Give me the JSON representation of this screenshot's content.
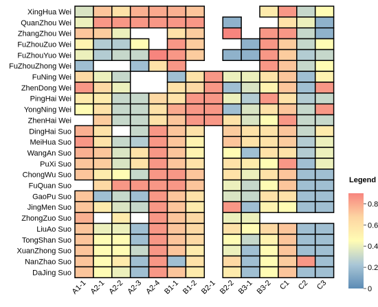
{
  "chart_data": {
    "type": "heatmap",
    "rows": [
      "XingHua Wei",
      "QuanZhou Wei",
      "ZhangZhou Wei",
      "FuZhouZuo Wei",
      "FuZhouYuo Wei",
      "FuZhouZhong Wei",
      "FuNing Wei",
      "ZhenDong Wei",
      "PingHai Wei",
      "YongNing Wei",
      "ZhenHai Wei",
      "DingHai Suo",
      "MeiHua Suo",
      "WangAn Suo",
      "PuXi Suo",
      "ChongWu Suo",
      "FuQuan Suo",
      "GaoPu Suo",
      "JingMen Suo",
      "ZhongZuo Suo",
      "LiuAo Suo",
      "TongShan Suo",
      "XuanZhong Suo",
      "NanZhao Suo",
      "DaJing Suo"
    ],
    "columns": [
      "A1-1",
      "A2-1",
      "A2-2",
      "A2-3",
      "A2-4",
      "B1-1",
      "B1-2",
      "B2-1",
      "B2-2",
      "B3-1",
      "B3-2",
      "C1",
      "C2",
      "C3"
    ],
    "values": [
      [
        0.35,
        0.72,
        0.6,
        0.78,
        0.8,
        0.78,
        0.72,
        null,
        null,
        null,
        0.55,
        0.85,
        0.3,
        0.45
      ],
      [
        0.4,
        0.85,
        0.85,
        0.85,
        0.85,
        0.85,
        0.85,
        null,
        0.15,
        null,
        null,
        0.6,
        0.4,
        0.15
      ],
      [
        0.72,
        0.7,
        0.4,
        null,
        null,
        0.6,
        0.7,
        null,
        0.9,
        null,
        0.85,
        0.85,
        0.3,
        0.15
      ],
      [
        0.5,
        0.25,
        0.25,
        0.45,
        null,
        0.85,
        0.7,
        null,
        null,
        0.15,
        0.85,
        0.7,
        0.3,
        0.45
      ],
      [
        0.4,
        0.25,
        0.3,
        0.3,
        0.9,
        0.85,
        0.7,
        null,
        0.15,
        0.15,
        0.85,
        0.7,
        0.25,
        0.3
      ],
      [
        0.2,
        null,
        null,
        0.2,
        0.6,
        0.85,
        null,
        null,
        null,
        null,
        0.85,
        0.72,
        0.3,
        0.45
      ],
      [
        0.65,
        0.4,
        0.3,
        null,
        null,
        0.2,
        0.6,
        0.85,
        0.4,
        0.4,
        0.6,
        0.72,
        0.2,
        0.5
      ],
      [
        0.85,
        0.65,
        0.4,
        null,
        null,
        0.6,
        0.65,
        0.85,
        0.2,
        0.35,
        0.5,
        0.72,
        0.2,
        0.85
      ],
      [
        0.55,
        0.55,
        0.3,
        0.3,
        0.65,
        0.6,
        0.85,
        0.85,
        0.4,
        0.25,
        0.85,
        0.6,
        0.25,
        0.3
      ],
      [
        0.45,
        0.6,
        0.3,
        0.3,
        0.6,
        0.8,
        0.85,
        0.85,
        0.2,
        0.35,
        0.6,
        0.72,
        0.3,
        0.85
      ],
      [
        null,
        0.7,
        0.3,
        0.3,
        0.6,
        0.72,
        0.85,
        0.85,
        0.6,
        0.35,
        0.45,
        0.85,
        0.3,
        0.3
      ],
      [
        0.78,
        0.6,
        null,
        0.3,
        0.85,
        0.72,
        0.6,
        null,
        0.7,
        0.6,
        0.6,
        0.72,
        0.3,
        0.55
      ],
      [
        0.85,
        0.6,
        0.3,
        0.25,
        0.85,
        0.72,
        0.5,
        null,
        0.72,
        0.6,
        0.6,
        0.7,
        0.25,
        0.4
      ],
      [
        0.78,
        0.72,
        0.35,
        0.6,
        0.85,
        0.72,
        0.5,
        null,
        0.45,
        0.2,
        0.6,
        0.6,
        0.25,
        0.4
      ],
      [
        0.72,
        0.7,
        0.35,
        0.6,
        0.85,
        0.72,
        0.6,
        null,
        0.6,
        0.55,
        0.45,
        0.85,
        0.2,
        0.4
      ],
      [
        0.72,
        0.55,
        0.45,
        0.3,
        0.85,
        0.85,
        0.72,
        null,
        0.6,
        0.4,
        0.6,
        0.72,
        0.2,
        0.2
      ],
      [
        null,
        0.65,
        0.85,
        0.85,
        0.85,
        0.85,
        0.72,
        null,
        0.4,
        0.3,
        0.45,
        0.72,
        0.2,
        0.2
      ],
      [
        0.72,
        0.2,
        0.3,
        0.2,
        0.85,
        0.72,
        0.6,
        null,
        0.35,
        0.3,
        0.6,
        0.6,
        0.2,
        0.2
      ],
      [
        0.72,
        0.55,
        0.35,
        0.3,
        0.85,
        0.72,
        0.55,
        null,
        0.85,
        0.2,
        0.5,
        0.45,
        0.2,
        0.2
      ],
      [
        0.78,
        null,
        0.55,
        null,
        0.85,
        0.72,
        0.65,
        null,
        0.4,
        0.4,
        null,
        null,
        null,
        null
      ],
      [
        0.72,
        0.4,
        0.4,
        0.2,
        0.85,
        0.72,
        0.65,
        null,
        0.6,
        0.45,
        0.65,
        0.72,
        0.2,
        0.2
      ],
      [
        0.72,
        0.45,
        0.45,
        0.2,
        0.85,
        0.72,
        0.65,
        null,
        0.45,
        0.3,
        0.5,
        0.72,
        0.2,
        0.2
      ],
      [
        0.72,
        0.45,
        0.45,
        0.3,
        0.85,
        0.72,
        0.55,
        null,
        0.4,
        0.2,
        0.45,
        0.72,
        0.2,
        0.2
      ],
      [
        0.72,
        0.45,
        0.55,
        0.2,
        0.85,
        0.2,
        0.6,
        null,
        0.65,
        0.2,
        0.45,
        0.7,
        0.85,
        0.2
      ],
      [
        0.72,
        0.45,
        0.4,
        0.2,
        0.85,
        0.72,
        0.55,
        null,
        0.55,
        0.2,
        0.45,
        0.72,
        0.2,
        0.2
      ]
    ],
    "legend": {
      "title": "Legend",
      "ticks": [
        0,
        0.2,
        0.4,
        0.6,
        0.8
      ],
      "tick_labels": [
        "0",
        "0.2",
        "0.4",
        "0.6",
        "0.8"
      ],
      "range": [
        0,
        0.9
      ],
      "placement": "right"
    },
    "colorscale": [
      "#5b8bb5",
      "#a9c6d6",
      "#fffcb4",
      "#fdd5a2",
      "#f7857e"
    ]
  }
}
